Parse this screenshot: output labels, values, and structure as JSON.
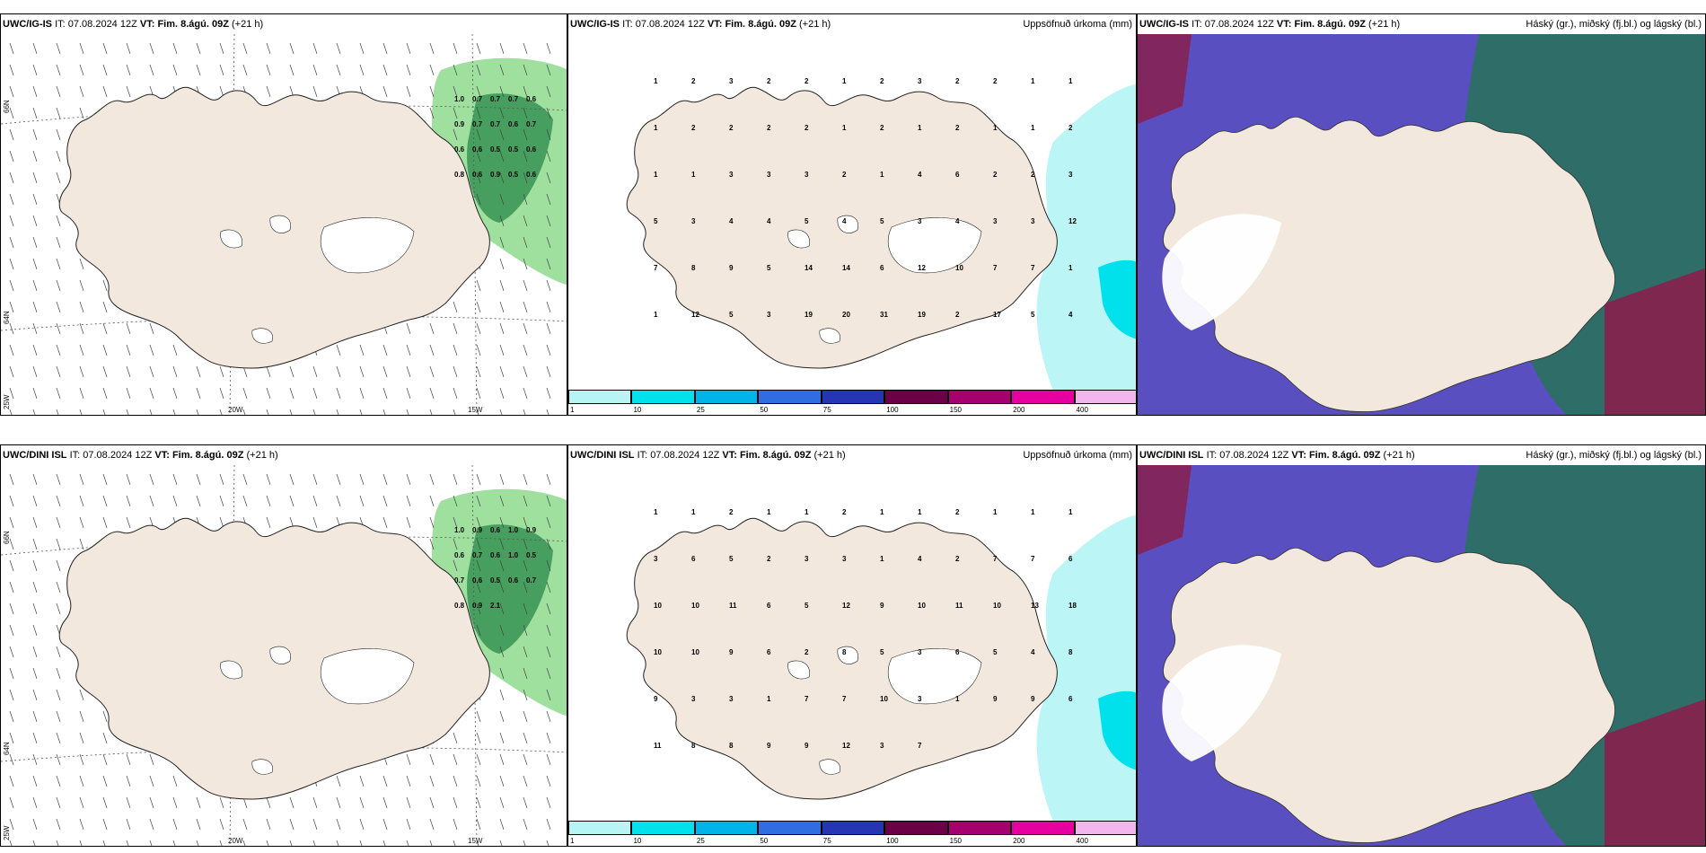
{
  "panels": {
    "top_left": {
      "model": "UWC/IG-IS",
      "it_label": "IT:",
      "it_value": "07.08.2024 12Z",
      "vt_label": "VT:",
      "vt_value": "Fim. 8.ágú. 09Z",
      "lead": "(+21 h)",
      "right_title": ""
    },
    "top_mid": {
      "model": "UWC/IG-IS",
      "it_label": "IT:",
      "it_value": "07.08.2024 12Z",
      "vt_label": "VT:",
      "vt_value": "Fim. 8.ágú. 09Z",
      "lead": "(+21 h)",
      "right_title": "Uppsöfnuð úrkoma (mm)"
    },
    "top_right": {
      "model": "UWC/IG-IS",
      "it_label": "IT:",
      "it_value": "07.08.2024 12Z",
      "vt_label": "VT:",
      "vt_value": "Fim. 8.ágú. 09Z",
      "lead": "(+21 h)",
      "right_title": "Háský (gr.), miðský (fj.bl.) og lágský (bl.)"
    },
    "bot_left": {
      "model": "UWC/DINI ISL",
      "it_label": "IT:",
      "it_value": "07.08.2024 12Z",
      "vt_label": "VT:",
      "vt_value": "Fim. 8.ágú. 09Z",
      "lead": "(+21 h)",
      "right_title": ""
    },
    "bot_mid": {
      "model": "UWC/DINI ISL",
      "it_label": "IT:",
      "it_value": "07.08.2024 12Z",
      "vt_label": "VT:",
      "vt_value": "Fim. 8.ágú. 09Z",
      "lead": "(+21 h)",
      "right_title": "Uppsöfnuð úrkoma (mm)"
    },
    "bot_right": {
      "model": "UWC/DINI ISL",
      "it_label": "IT:",
      "it_value": "07.08.2024 12Z",
      "vt_label": "VT:",
      "vt_value": "Fim. 8.ágú. 09Z",
      "lead": "(+21 h)",
      "right_title": "Háský (gr.), miðský (fj.bl.) og lágský (bl.)"
    }
  },
  "axis_labels": {
    "lat66": "66N",
    "lat64": "64N",
    "lon25": "25W",
    "lon20": "20W",
    "lon15": "15W"
  },
  "colorbar": {
    "ticks": [
      "1",
      "10",
      "25",
      "50",
      "75",
      "100",
      "150",
      "200",
      "400"
    ],
    "colors": [
      "#b8f4f4",
      "#00e1ec",
      "#00b4e8",
      "#2f6de0",
      "#2436b4",
      "#6a0046",
      "#a4006f",
      "#e600a0",
      "#f2b6ef"
    ]
  },
  "colors": {
    "land": "#f2e8dd",
    "ice": "#ffffff",
    "wind_green": "#7fd67f",
    "cloud_blue": "#5a4fc0",
    "cloud_teal": "#2c6f63",
    "cloud_magenta": "#8a1f4d"
  },
  "precip_top": [
    "1",
    "2",
    "3",
    "2",
    "2",
    "1",
    "2",
    "3",
    "2",
    "2",
    "1",
    "1",
    "1",
    "2",
    "2",
    "2",
    "2",
    "1",
    "2",
    "1",
    "2",
    "1",
    "1",
    "2",
    "1",
    "1",
    "3",
    "3",
    "3",
    "2",
    "1",
    "4",
    "6",
    "2",
    "2",
    "3",
    "5",
    "3",
    "4",
    "4",
    "5",
    "4",
    "5",
    "3",
    "4",
    "3",
    "3",
    "12",
    "7",
    "8",
    "9",
    "5",
    "14",
    "14",
    "6",
    "12",
    "10",
    "7",
    "7",
    "1",
    "1",
    "12",
    "5",
    "3",
    "19",
    "20",
    "31",
    "19",
    "2",
    "17",
    "5",
    "4"
  ],
  "precip_bot": [
    "1",
    "1",
    "2",
    "1",
    "1",
    "2",
    "1",
    "1",
    "2",
    "1",
    "1",
    "1",
    "3",
    "6",
    "5",
    "2",
    "3",
    "3",
    "1",
    "4",
    "2",
    "7",
    "7",
    "6",
    "10",
    "10",
    "11",
    "6",
    "5",
    "12",
    "9",
    "10",
    "11",
    "10",
    "13",
    "18",
    "10",
    "10",
    "9",
    "6",
    "2",
    "8",
    "5",
    "3",
    "6",
    "5",
    "4",
    "8",
    "9",
    "3",
    "3",
    "1",
    "7",
    "7",
    "10",
    "3",
    "1",
    "9",
    "9",
    "6",
    "11",
    "8",
    "8",
    "9",
    "9",
    "12",
    "3",
    "7"
  ],
  "wind_top": [
    "1.0",
    "0.7",
    "0.7",
    "0.7",
    "0.6",
    "0.9",
    "0.7",
    "0.7",
    "0.6",
    "0.7",
    "0.6",
    "0.6",
    "0.5",
    "0.5",
    "0.6",
    "0.8",
    "0.6",
    "0.9",
    "0.5",
    "0.6"
  ],
  "wind_bot": [
    "1.0",
    "0.9",
    "0.6",
    "1.0",
    "0.9",
    "0.6",
    "0.7",
    "0.6",
    "1.0",
    "0.5",
    "0.7",
    "0.6",
    "0.5",
    "0.6",
    "0.7",
    "0.8",
    "0.9",
    "2.1"
  ]
}
